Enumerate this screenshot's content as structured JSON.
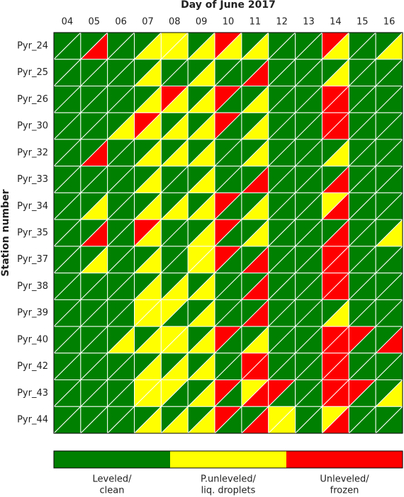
{
  "chart_data": {
    "type": "triangle_grid",
    "title": "Day of June 2017",
    "y_label": "Station number",
    "columns": [
      "04",
      "05",
      "06",
      "07",
      "08",
      "09",
      "10",
      "11",
      "12",
      "13",
      "14",
      "15",
      "16"
    ],
    "rows": [
      "Pyr_24",
      "Pyr_25",
      "Pyr_26",
      "Pyr_30",
      "Pyr_32",
      "Pyr_33",
      "Pyr_34",
      "Pyr_35",
      "Pyr_37",
      "Pyr_38",
      "Pyr_39",
      "Pyr_40",
      "Pyr_42",
      "Pyr_43",
      "Pyr_44"
    ],
    "upper_left": [
      [
        0,
        0,
        0,
        0,
        1,
        0,
        2,
        0,
        0,
        0,
        2,
        0,
        0
      ],
      [
        0,
        0,
        0,
        0,
        0,
        0,
        0,
        0,
        0,
        0,
        0,
        0,
        0
      ],
      [
        0,
        0,
        0,
        0,
        2,
        0,
        2,
        0,
        0,
        0,
        2,
        0,
        0
      ],
      [
        0,
        0,
        0,
        2,
        0,
        0,
        2,
        0,
        0,
        0,
        2,
        0,
        0
      ],
      [
        0,
        0,
        0,
        0,
        0,
        0,
        0,
        0,
        0,
        0,
        0,
        0,
        0
      ],
      [
        0,
        0,
        0,
        0,
        0,
        0,
        0,
        0,
        0,
        0,
        0,
        0,
        0
      ],
      [
        0,
        0,
        0,
        0,
        0,
        0,
        2,
        0,
        0,
        0,
        1,
        0,
        0
      ],
      [
        0,
        0,
        0,
        2,
        0,
        0,
        2,
        0,
        0,
        0,
        0,
        0,
        0
      ],
      [
        0,
        0,
        0,
        0,
        0,
        1,
        2,
        0,
        0,
        0,
        2,
        0,
        0
      ],
      [
        0,
        0,
        0,
        0,
        0,
        0,
        0,
        0,
        0,
        0,
        2,
        0,
        0
      ],
      [
        0,
        0,
        0,
        1,
        1,
        0,
        0,
        0,
        0,
        0,
        0,
        0,
        0
      ],
      [
        0,
        0,
        0,
        0,
        1,
        0,
        2,
        0,
        0,
        0,
        2,
        2,
        0
      ],
      [
        0,
        0,
        0,
        0,
        0,
        0,
        0,
        2,
        0,
        0,
        2,
        0,
        0
      ],
      [
        0,
        0,
        0,
        1,
        1,
        0,
        2,
        1,
        2,
        0,
        2,
        2,
        0
      ],
      [
        0,
        0,
        0,
        0,
        0,
        0,
        2,
        0,
        1,
        0,
        1,
        0,
        0
      ]
    ],
    "lower_right": [
      [
        0,
        2,
        0,
        1,
        1,
        1,
        1,
        1,
        0,
        0,
        1,
        0,
        1
      ],
      [
        0,
        0,
        0,
        1,
        0,
        1,
        0,
        2,
        0,
        0,
        1,
        0,
        0
      ],
      [
        0,
        0,
        0,
        1,
        1,
        1,
        0,
        1,
        0,
        0,
        2,
        0,
        0
      ],
      [
        0,
        0,
        1,
        1,
        1,
        1,
        0,
        1,
        0,
        0,
        2,
        0,
        0
      ],
      [
        0,
        2,
        0,
        1,
        1,
        1,
        0,
        1,
        0,
        0,
        1,
        0,
        0
      ],
      [
        0,
        0,
        0,
        1,
        0,
        1,
        0,
        2,
        0,
        0,
        2,
        0,
        0
      ],
      [
        0,
        1,
        0,
        1,
        1,
        1,
        0,
        1,
        0,
        0,
        2,
        0,
        0
      ],
      [
        0,
        2,
        0,
        1,
        0,
        1,
        0,
        1,
        0,
        0,
        2,
        0,
        1
      ],
      [
        0,
        1,
        0,
        1,
        0,
        1,
        0,
        2,
        0,
        0,
        2,
        0,
        0
      ],
      [
        0,
        0,
        0,
        1,
        1,
        1,
        0,
        2,
        0,
        0,
        2,
        0,
        0
      ],
      [
        0,
        0,
        0,
        1,
        0,
        1,
        0,
        2,
        0,
        0,
        1,
        0,
        0
      ],
      [
        0,
        0,
        1,
        1,
        1,
        1,
        0,
        1,
        0,
        0,
        2,
        0,
        2
      ],
      [
        0,
        0,
        0,
        1,
        1,
        1,
        0,
        2,
        0,
        0,
        2,
        0,
        0
      ],
      [
        0,
        0,
        0,
        1,
        0,
        1,
        0,
        2,
        0,
        0,
        2,
        0,
        1
      ],
      [
        0,
        0,
        0,
        1,
        1,
        1,
        0,
        2,
        1,
        0,
        2,
        0,
        0
      ]
    ],
    "states": [
      {
        "value": 0,
        "color": "#008000",
        "label": [
          "Leveled/",
          "clean"
        ]
      },
      {
        "value": 1,
        "color": "#ffff00",
        "label": [
          "P.unleveled/",
          "liq. droplets"
        ]
      },
      {
        "value": 2,
        "color": "#ff0000",
        "label": [
          "Unleveled/",
          "frozen"
        ]
      }
    ]
  }
}
